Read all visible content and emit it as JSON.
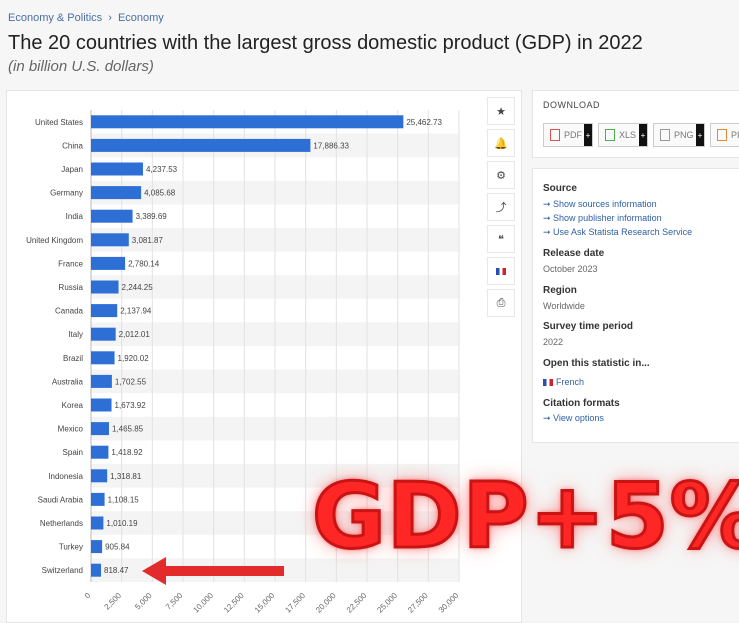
{
  "breadcrumb": {
    "item1": "Economy & Politics",
    "separator": "›",
    "item2": "Economy"
  },
  "title": "The 20 countries with the largest gross domestic product (GDP) in 2022",
  "subtitle": "(in billion U.S. dollars)",
  "toolbar_icons": [
    "star-icon",
    "bell-icon",
    "gear-icon",
    "share-icon",
    "quote-icon",
    "french-flag-icon",
    "print-icon"
  ],
  "toolbar_glyphs": [
    "★",
    "🔔",
    "⚙",
    "⤴",
    "❝",
    "",
    "⎙"
  ],
  "download": {
    "title": "DOWNLOAD",
    "buttons": [
      "PDF",
      "XLS",
      "PNG",
      "PI"
    ],
    "plus": "+"
  },
  "info": {
    "source_heading": "Source",
    "source_links": [
      "Show sources information",
      "Show publisher information",
      "Use Ask Statista Research Service"
    ],
    "release_heading": "Release date",
    "release_value": "October 2023",
    "region_heading": "Region",
    "region_value": "Worldwide",
    "survey_heading": "Survey time period",
    "survey_value": "2022",
    "open_heading": "Open this statistic in...",
    "open_link": "French",
    "citation_heading": "Citation formats",
    "citation_link": "View options"
  },
  "overlay_text": "GDP+5%",
  "colors": {
    "bar": "#2e6fd6",
    "overlay": "#ff2626",
    "link": "#2e5fa3"
  },
  "chart_data": {
    "type": "bar",
    "orientation": "horizontal",
    "categories": [
      "United States",
      "China",
      "Japan",
      "Germany",
      "India",
      "United Kingdom",
      "France",
      "Russia",
      "Canada",
      "Italy",
      "Brazil",
      "Australia",
      "Korea",
      "Mexico",
      "Spain",
      "Indonesia",
      "Saudi Arabia",
      "Netherlands",
      "Turkey",
      "Switzerland"
    ],
    "values": [
      25462.73,
      17886.33,
      4237.53,
      4085.68,
      3389.69,
      3081.87,
      2780.14,
      2244.25,
      2137.94,
      2012.01,
      1920.02,
      1702.55,
      1673.92,
      1465.85,
      1418.92,
      1318.81,
      1108.15,
      1010.19,
      905.84,
      818.47
    ],
    "value_labels": [
      "25,462.73",
      "17,886.33",
      "4,237.53",
      "4,085.68",
      "3,389.69",
      "3,081.87",
      "2,780.14",
      "2,244.25",
      "2,137.94",
      "2,012.01",
      "1,920.02",
      "1,702.55",
      "1,673.92",
      "1,465.85",
      "1,418.92",
      "1,318.81",
      "1,108.15",
      "1,010.19",
      "905.84",
      "818.47"
    ],
    "xlim": [
      0,
      30000
    ],
    "ticks": [
      0,
      2500,
      5000,
      7500,
      10000,
      12500,
      15000,
      17500,
      20000,
      22500,
      25000,
      27500,
      30000
    ],
    "tick_labels": [
      "0",
      "2,500",
      "5,000",
      "7,500",
      "10,000",
      "12,500",
      "15,000",
      "17,500",
      "20,000",
      "22,500",
      "25,000",
      "27,500",
      "30,000"
    ],
    "grid": true,
    "highlighted_category": "Switzerland"
  }
}
